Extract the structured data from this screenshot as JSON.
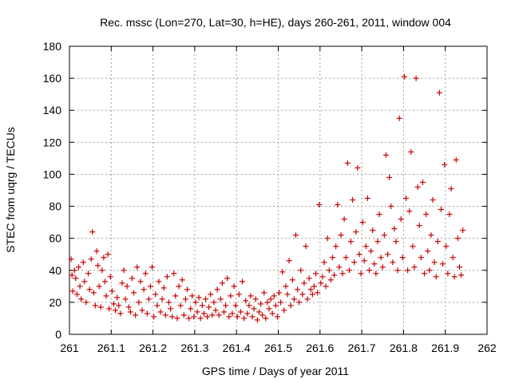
{
  "chart_data": {
    "type": "scatter",
    "title": "Rec. mssc (Lon=270, Lat=30, h=HE), days 260-261, 2011, window 004",
    "xlabel": "GPS time / Days of year 2011",
    "ylabel": "STEC from uqrg / TECUs",
    "xlim": [
      261,
      262
    ],
    "ylim": [
      0,
      180
    ],
    "x_ticks": [
      "261",
      "261.1",
      "261.2",
      "261.3",
      "261.4",
      "261.5",
      "261.6",
      "261.7",
      "261.8",
      "261.9",
      "262"
    ],
    "y_ticks": [
      "0",
      "20",
      "40",
      "60",
      "80",
      "100",
      "120",
      "140",
      "160",
      "180"
    ],
    "grid": true,
    "legend": "none",
    "marker": "plus",
    "marker_color": "#cc0000",
    "series": [
      {
        "points": [
          [
            261.004,
            47
          ],
          [
            261.006,
            37
          ],
          [
            261.008,
            27
          ],
          [
            261.012,
            40
          ],
          [
            261.015,
            35
          ],
          [
            261.018,
            25
          ],
          [
            261.022,
            42
          ],
          [
            261.025,
            30
          ],
          [
            261.028,
            22
          ],
          [
            261.033,
            45
          ],
          [
            261.036,
            33
          ],
          [
            261.04,
            20
          ],
          [
            261.045,
            38
          ],
          [
            261.048,
            28
          ],
          [
            261.052,
            47
          ],
          [
            261.055,
            64
          ],
          [
            261.058,
            26
          ],
          [
            261.062,
            18
          ],
          [
            261.065,
            52
          ],
          [
            261.068,
            43
          ],
          [
            261.071,
            30
          ],
          [
            261.075,
            17
          ],
          [
            261.078,
            40
          ],
          [
            261.082,
            48
          ],
          [
            261.085,
            33
          ],
          [
            261.088,
            24
          ],
          [
            261.092,
            50
          ],
          [
            261.095,
            16
          ],
          [
            261.098,
            36
          ],
          [
            261.102,
            27
          ],
          [
            261.106,
            19
          ],
          [
            261.11,
            15
          ],
          [
            261.114,
            23
          ],
          [
            261.118,
            18
          ],
          [
            261.122,
            13
          ],
          [
            261.126,
            32
          ],
          [
            261.13,
            40
          ],
          [
            261.134,
            22
          ],
          [
            261.138,
            30
          ],
          [
            261.142,
            17
          ],
          [
            261.146,
            14
          ],
          [
            261.15,
            35
          ],
          [
            261.154,
            26
          ],
          [
            261.158,
            12
          ],
          [
            261.162,
            42
          ],
          [
            261.166,
            20
          ],
          [
            261.17,
            33
          ],
          [
            261.174,
            15
          ],
          [
            261.178,
            28
          ],
          [
            261.182,
            38
          ],
          [
            261.186,
            13
          ],
          [
            261.19,
            22
          ],
          [
            261.194,
            30
          ],
          [
            261.198,
            42
          ],
          [
            261.202,
            11
          ],
          [
            261.206,
            25
          ],
          [
            261.21,
            18
          ],
          [
            261.214,
            33
          ],
          [
            261.218,
            14
          ],
          [
            261.222,
            22
          ],
          [
            261.226,
            29
          ],
          [
            261.23,
            12
          ],
          [
            261.234,
            36
          ],
          [
            261.238,
            20
          ],
          [
            261.242,
            16
          ],
          [
            261.246,
            11
          ],
          [
            261.25,
            38
          ],
          [
            261.254,
            24
          ],
          [
            261.258,
            10
          ],
          [
            261.262,
            30
          ],
          [
            261.266,
            18
          ],
          [
            261.27,
            34
          ],
          [
            261.274,
            12
          ],
          [
            261.278,
            22
          ],
          [
            261.282,
            28
          ],
          [
            261.286,
            10
          ],
          [
            261.29,
            16
          ],
          [
            261.294,
            24
          ],
          [
            261.298,
            11
          ],
          [
            261.302,
            20
          ],
          [
            261.306,
            14
          ],
          [
            261.31,
            23
          ],
          [
            261.314,
            10
          ],
          [
            261.318,
            18
          ],
          [
            261.322,
            13
          ],
          [
            261.326,
            22
          ],
          [
            261.33,
            11
          ],
          [
            261.334,
            17
          ],
          [
            261.338,
            25
          ],
          [
            261.342,
            12
          ],
          [
            261.346,
            20
          ],
          [
            261.35,
            15
          ],
          [
            261.354,
            28
          ],
          [
            261.358,
            12
          ],
          [
            261.362,
            22
          ],
          [
            261.366,
            32
          ],
          [
            261.37,
            14
          ],
          [
            261.374,
            18
          ],
          [
            261.378,
            35
          ],
          [
            261.382,
            11
          ],
          [
            261.386,
            24
          ],
          [
            261.39,
            13
          ],
          [
            261.394,
            30
          ],
          [
            261.398,
            18
          ],
          [
            261.402,
            11
          ],
          [
            261.406,
            25
          ],
          [
            261.41,
            14
          ],
          [
            261.414,
            33
          ],
          [
            261.418,
            10
          ],
          [
            261.422,
            21
          ],
          [
            261.426,
            13
          ],
          [
            261.43,
            18
          ],
          [
            261.434,
            24
          ],
          [
            261.438,
            11
          ],
          [
            261.442,
            16
          ],
          [
            261.446,
            22
          ],
          [
            261.45,
            9
          ],
          [
            261.454,
            14
          ],
          [
            261.458,
            19
          ],
          [
            261.462,
            12
          ],
          [
            261.466,
            26
          ],
          [
            261.47,
            10
          ],
          [
            261.474,
            20
          ],
          [
            261.478,
            16
          ],
          [
            261.482,
            22
          ],
          [
            261.486,
            13
          ],
          [
            261.49,
            24
          ],
          [
            261.494,
            18
          ],
          [
            261.498,
            11
          ],
          [
            261.502,
            26
          ],
          [
            261.506,
            20
          ],
          [
            261.51,
            39
          ],
          [
            261.514,
            15
          ],
          [
            261.518,
            30
          ],
          [
            261.522,
            25
          ],
          [
            261.526,
            46
          ],
          [
            261.53,
            18
          ],
          [
            261.534,
            34
          ],
          [
            261.538,
            22
          ],
          [
            261.542,
            62
          ],
          [
            261.546,
            28
          ],
          [
            261.55,
            20
          ],
          [
            261.554,
            40
          ],
          [
            261.558,
            25
          ],
          [
            261.562,
            32
          ],
          [
            261.566,
            55
          ],
          [
            261.57,
            22
          ],
          [
            261.574,
            35
          ],
          [
            261.578,
            28
          ],
          [
            261.582,
            25
          ],
          [
            261.586,
            30
          ],
          [
            261.59,
            38
          ],
          [
            261.594,
            26
          ],
          [
            261.598,
            81
          ],
          [
            261.602,
            32
          ],
          [
            261.606,
            36
          ],
          [
            261.61,
            45
          ],
          [
            261.614,
            30
          ],
          [
            261.618,
            60
          ],
          [
            261.622,
            40
          ],
          [
            261.626,
            34
          ],
          [
            261.63,
            48
          ],
          [
            261.634,
            37
          ],
          [
            261.638,
            55
          ],
          [
            261.642,
            81
          ],
          [
            261.646,
            42
          ],
          [
            261.65,
            62
          ],
          [
            261.654,
            38
          ],
          [
            261.658,
            72
          ],
          [
            261.662,
            48
          ],
          [
            261.666,
            107
          ],
          [
            261.67,
            40
          ],
          [
            261.674,
            58
          ],
          [
            261.678,
            84
          ],
          [
            261.682,
            45
          ],
          [
            261.686,
            64
          ],
          [
            261.69,
            104
          ],
          [
            261.694,
            50
          ],
          [
            261.698,
            38
          ],
          [
            261.702,
            70
          ],
          [
            261.706,
            46
          ],
          [
            261.71,
            55
          ],
          [
            261.714,
            85
          ],
          [
            261.718,
            40
          ],
          [
            261.722,
            52
          ],
          [
            261.726,
            65
          ],
          [
            261.73,
            44
          ],
          [
            261.734,
            38
          ],
          [
            261.738,
            58
          ],
          [
            261.742,
            75
          ],
          [
            261.746,
            48
          ],
          [
            261.75,
            42
          ],
          [
            261.754,
            62
          ],
          [
            261.758,
            112
          ],
          [
            261.762,
            50
          ],
          [
            261.766,
            98
          ],
          [
            261.77,
            80
          ],
          [
            261.774,
            45
          ],
          [
            261.778,
            66
          ],
          [
            261.782,
            58
          ],
          [
            261.786,
            40
          ],
          [
            261.79,
            135
          ],
          [
            261.794,
            72
          ],
          [
            261.798,
            48
          ],
          [
            261.802,
            161
          ],
          [
            261.806,
            85
          ],
          [
            261.81,
            40
          ],
          [
            261.814,
            77
          ],
          [
            261.818,
            114
          ],
          [
            261.822,
            55
          ],
          [
            261.826,
            42
          ],
          [
            261.83,
            160
          ],
          [
            261.834,
            92
          ],
          [
            261.838,
            68
          ],
          [
            261.842,
            48
          ],
          [
            261.846,
            95
          ],
          [
            261.85,
            38
          ],
          [
            261.854,
            75
          ],
          [
            261.858,
            52
          ],
          [
            261.862,
            40
          ],
          [
            261.866,
            62
          ],
          [
            261.87,
            84
          ],
          [
            261.874,
            45
          ],
          [
            261.878,
            36
          ],
          [
            261.882,
            58
          ],
          [
            261.886,
            151
          ],
          [
            261.89,
            78
          ],
          [
            261.894,
            44
          ],
          [
            261.898,
            106
          ],
          [
            261.902,
            55
          ],
          [
            261.906,
            38
          ],
          [
            261.91,
            75
          ],
          [
            261.914,
            91
          ],
          [
            261.918,
            48
          ],
          [
            261.922,
            36
          ],
          [
            261.926,
            109
          ],
          [
            261.93,
            60
          ],
          [
            261.934,
            42
          ],
          [
            261.938,
            37
          ],
          [
            261.942,
            65
          ]
        ]
      }
    ]
  }
}
